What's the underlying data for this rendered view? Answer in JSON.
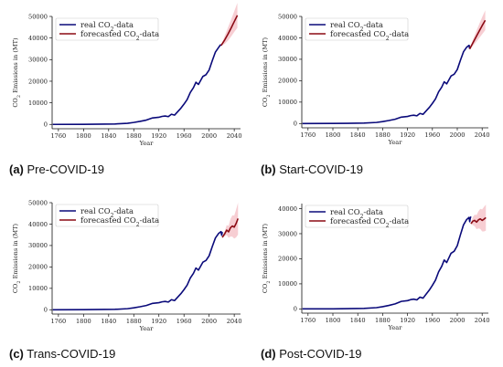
{
  "colors": {
    "real": "#0a0a7a",
    "forecast": "#8b0a14",
    "band": "#f5c2c8",
    "axis": "#111111"
  },
  "chart_data": [
    {
      "type": "line",
      "caption_letter": "(a)",
      "caption_text": "Pre-COVID-19",
      "xlabel": "Year",
      "ylabel": "CO2 Emissions in (MT)",
      "xlim": [
        1750,
        2050
      ],
      "ylim": [
        0,
        50000
      ],
      "xticks": [
        1760,
        1800,
        1840,
        1880,
        1920,
        1960,
        2000,
        2040
      ],
      "yticks": [
        0,
        10000,
        20000,
        30000,
        40000,
        50000
      ],
      "legend": {
        "position": "top-left",
        "real_prefix": "real CO",
        "real_suffix": "-data",
        "forecast_prefix": "forecasted CO",
        "forecast_suffix": "-data",
        "subscript": "2"
      },
      "series": [
        {
          "name": "real CO2-data",
          "x": [
            1751,
            1800,
            1850,
            1870,
            1880,
            1890,
            1900,
            1910,
            1920,
            1925,
            1930,
            1935,
            1940,
            1945,
            1950,
            1955,
            1960,
            1965,
            1970,
            1975,
            1979,
            1983,
            1990,
            1995,
            2000,
            2005,
            2010,
            2015,
            2018,
            2019
          ],
          "y": [
            10,
            40,
            200,
            500,
            900,
            1400,
            2000,
            3000,
            3300,
            3700,
            3900,
            3600,
            4700,
            4300,
            5900,
            7500,
            9400,
            11500,
            14800,
            17000,
            19500,
            18500,
            22200,
            23000,
            25200,
            29500,
            33500,
            35600,
            36800,
            36500
          ]
        },
        {
          "name": "forecasted CO2-data",
          "x": [
            2019,
            2025,
            2030,
            2035,
            2040,
            2045
          ],
          "y": [
            36500,
            39200,
            41800,
            44600,
            47600,
            50500
          ],
          "lower": [
            36500,
            37300,
            38800,
            40700,
            42800,
            44700
          ],
          "upper": [
            36500,
            41100,
            44800,
            48500,
            52400,
            56300
          ]
        }
      ]
    },
    {
      "type": "line",
      "caption_letter": "(b)",
      "caption_text": "Start-COVID-19",
      "xlabel": "Year",
      "ylabel": "CO2 Emissions in (MT)",
      "xlim": [
        1750,
        2050
      ],
      "ylim": [
        0,
        50000
      ],
      "xticks": [
        1760,
        1800,
        1840,
        1880,
        1920,
        1960,
        2000,
        2040
      ],
      "yticks": [
        0,
        10000,
        20000,
        30000,
        40000,
        50000
      ],
      "legend": {
        "position": "top-left",
        "real_prefix": "real CO",
        "real_suffix": "-data",
        "forecast_prefix": "forecasted CO",
        "forecast_suffix": "-data",
        "subscript": "2"
      },
      "series": [
        {
          "name": "real CO2-data",
          "x": [
            1751,
            1800,
            1850,
            1870,
            1880,
            1890,
            1900,
            1910,
            1920,
            1925,
            1930,
            1935,
            1940,
            1945,
            1950,
            1955,
            1960,
            1965,
            1970,
            1975,
            1979,
            1983,
            1990,
            1995,
            2000,
            2005,
            2010,
            2015,
            2019,
            2020
          ],
          "y": [
            10,
            40,
            200,
            500,
            900,
            1400,
            2000,
            3000,
            3300,
            3700,
            3900,
            3600,
            4700,
            4300,
            5900,
            7500,
            9400,
            11500,
            14800,
            17000,
            19500,
            18500,
            22200,
            23000,
            25200,
            29500,
            33500,
            35600,
            36500,
            34800
          ]
        },
        {
          "name": "forecasted CO2-data",
          "x": [
            2020,
            2025,
            2030,
            2035,
            2040,
            2045
          ],
          "y": [
            34800,
            37600,
            40300,
            43000,
            45700,
            48200
          ],
          "lower": [
            34800,
            36200,
            37900,
            39800,
            41700,
            43600
          ],
          "upper": [
            34800,
            39000,
            42700,
            46200,
            49700,
            52800
          ]
        }
      ]
    },
    {
      "type": "line",
      "caption_letter": "(c)",
      "caption_text": "Trans-COVID-19",
      "xlabel": "Year",
      "ylabel": "CO2 Emissions in (MT)",
      "xlim": [
        1750,
        2050
      ],
      "ylim": [
        0,
        50000
      ],
      "xticks": [
        1760,
        1800,
        1840,
        1880,
        1920,
        1960,
        2000,
        2040
      ],
      "yticks": [
        0,
        10000,
        20000,
        30000,
        40000,
        50000
      ],
      "legend": {
        "position": "top-left",
        "real_prefix": "real CO",
        "real_suffix": "-data",
        "forecast_prefix": "forecasted CO",
        "forecast_suffix": "-data",
        "subscript": "2"
      },
      "series": [
        {
          "name": "real CO2-data",
          "x": [
            1751,
            1800,
            1850,
            1870,
            1880,
            1890,
            1900,
            1910,
            1920,
            1925,
            1930,
            1935,
            1940,
            1945,
            1950,
            1955,
            1960,
            1965,
            1970,
            1975,
            1979,
            1983,
            1990,
            1995,
            2000,
            2005,
            2010,
            2015,
            2019,
            2020,
            2021
          ],
          "y": [
            10,
            40,
            200,
            500,
            900,
            1400,
            2000,
            3000,
            3300,
            3700,
            3900,
            3600,
            4700,
            4300,
            5900,
            7500,
            9400,
            11500,
            14800,
            17000,
            19500,
            18500,
            22200,
            23000,
            25200,
            29500,
            33500,
            35600,
            36500,
            34800,
            36300
          ]
        },
        {
          "name": "forecasted CO2-data",
          "x": [
            2021,
            2025,
            2028,
            2031,
            2034,
            2037,
            2040,
            2043,
            2046
          ],
          "y": [
            33800,
            35600,
            37200,
            36400,
            38300,
            39100,
            38600,
            40300,
            42600
          ],
          "lower": [
            33800,
            34400,
            34900,
            33600,
            34200,
            34100,
            33200,
            33800,
            35100
          ],
          "upper": [
            33800,
            36800,
            39500,
            39200,
            42400,
            44100,
            44000,
            46800,
            50000
          ]
        }
      ]
    },
    {
      "type": "line",
      "caption_letter": "(d)",
      "caption_text": "Post-COVID-19",
      "xlabel": "Year",
      "ylabel": "CO2 Emissions in (MT)",
      "xlim": [
        1750,
        2050
      ],
      "ylim": [
        0,
        42000
      ],
      "xticks": [
        1760,
        1800,
        1840,
        1880,
        1920,
        1960,
        2000,
        2040
      ],
      "yticks": [
        0,
        10000,
        20000,
        30000,
        40000
      ],
      "legend": {
        "position": "top-left",
        "real_prefix": "real CO",
        "real_suffix": "-data",
        "forecast_prefix": "forecasted CO",
        "forecast_suffix": "-data",
        "subscript": "2"
      },
      "series": [
        {
          "name": "real CO2-data",
          "x": [
            1751,
            1800,
            1850,
            1870,
            1880,
            1890,
            1900,
            1910,
            1920,
            1925,
            1930,
            1935,
            1940,
            1945,
            1950,
            1955,
            1960,
            1965,
            1970,
            1975,
            1979,
            1983,
            1990,
            1995,
            2000,
            2005,
            2010,
            2015,
            2019,
            2020,
            2021,
            2022
          ],
          "y": [
            10,
            40,
            200,
            500,
            900,
            1400,
            2000,
            3000,
            3300,
            3700,
            3900,
            3600,
            4700,
            4300,
            5900,
            7500,
            9400,
            11500,
            14800,
            17000,
            19500,
            18500,
            22200,
            23000,
            25200,
            29500,
            33500,
            35600,
            36500,
            34800,
            36300,
            36800
          ]
        },
        {
          "name": "forecasted CO2-data",
          "x": [
            2022,
            2025,
            2028,
            2031,
            2034,
            2037,
            2040,
            2043,
            2046
          ],
          "y": [
            34000,
            35000,
            35300,
            34600,
            35500,
            35900,
            35300,
            35800,
            36400
          ],
          "lower": [
            34000,
            33400,
            33000,
            31800,
            32100,
            31900,
            30900,
            30900,
            31200
          ],
          "upper": [
            34000,
            36600,
            37600,
            37400,
            38900,
            39900,
            39700,
            40700,
            41600
          ]
        }
      ]
    }
  ]
}
